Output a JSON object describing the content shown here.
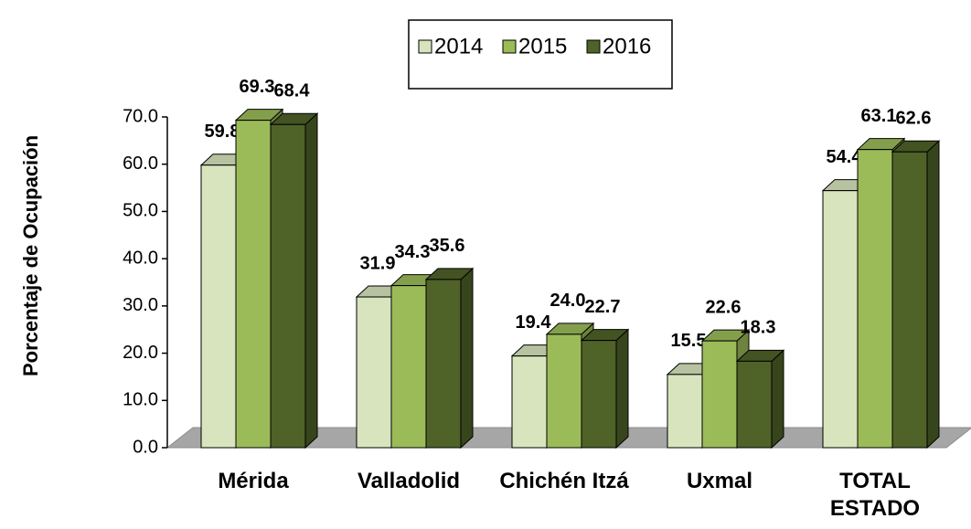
{
  "chart_data": {
    "type": "bar3d",
    "y_axis_label": "Porcentaje de Ocupación",
    "categories": [
      "Mérida",
      "Valladolid",
      "Chichén Itzá",
      "Uxmal",
      "TOTAL ESTADO"
    ],
    "series": [
      {
        "name": "2014",
        "color": "#d7e4bd",
        "values": [
          59.8,
          31.9,
          19.4,
          15.5,
          54.4
        ]
      },
      {
        "name": "2015",
        "color": "#9bbb59",
        "values": [
          69.3,
          34.3,
          24.0,
          22.6,
          63.1
        ],
        "value_labels": [
          "69.3",
          "34.3",
          "24.0",
          "22.6",
          "63.1"
        ]
      },
      {
        "name": "2016",
        "color": "#4f6228",
        "values": [
          68.4,
          35.6,
          22.7,
          18.3,
          62.6
        ]
      }
    ],
    "ylim": [
      0,
      70
    ],
    "yticks": [
      {
        "value": 0,
        "label": "0.0"
      },
      {
        "value": 10,
        "label": "10.0"
      },
      {
        "value": 20,
        "label": "20.0"
      },
      {
        "value": 30,
        "label": "30.0"
      },
      {
        "value": 40,
        "label": "40.0"
      },
      {
        "value": 50,
        "label": "50.0"
      },
      {
        "value": 60,
        "label": "60.0"
      },
      {
        "value": 70,
        "label": "70.0"
      }
    ],
    "legend": "top"
  }
}
